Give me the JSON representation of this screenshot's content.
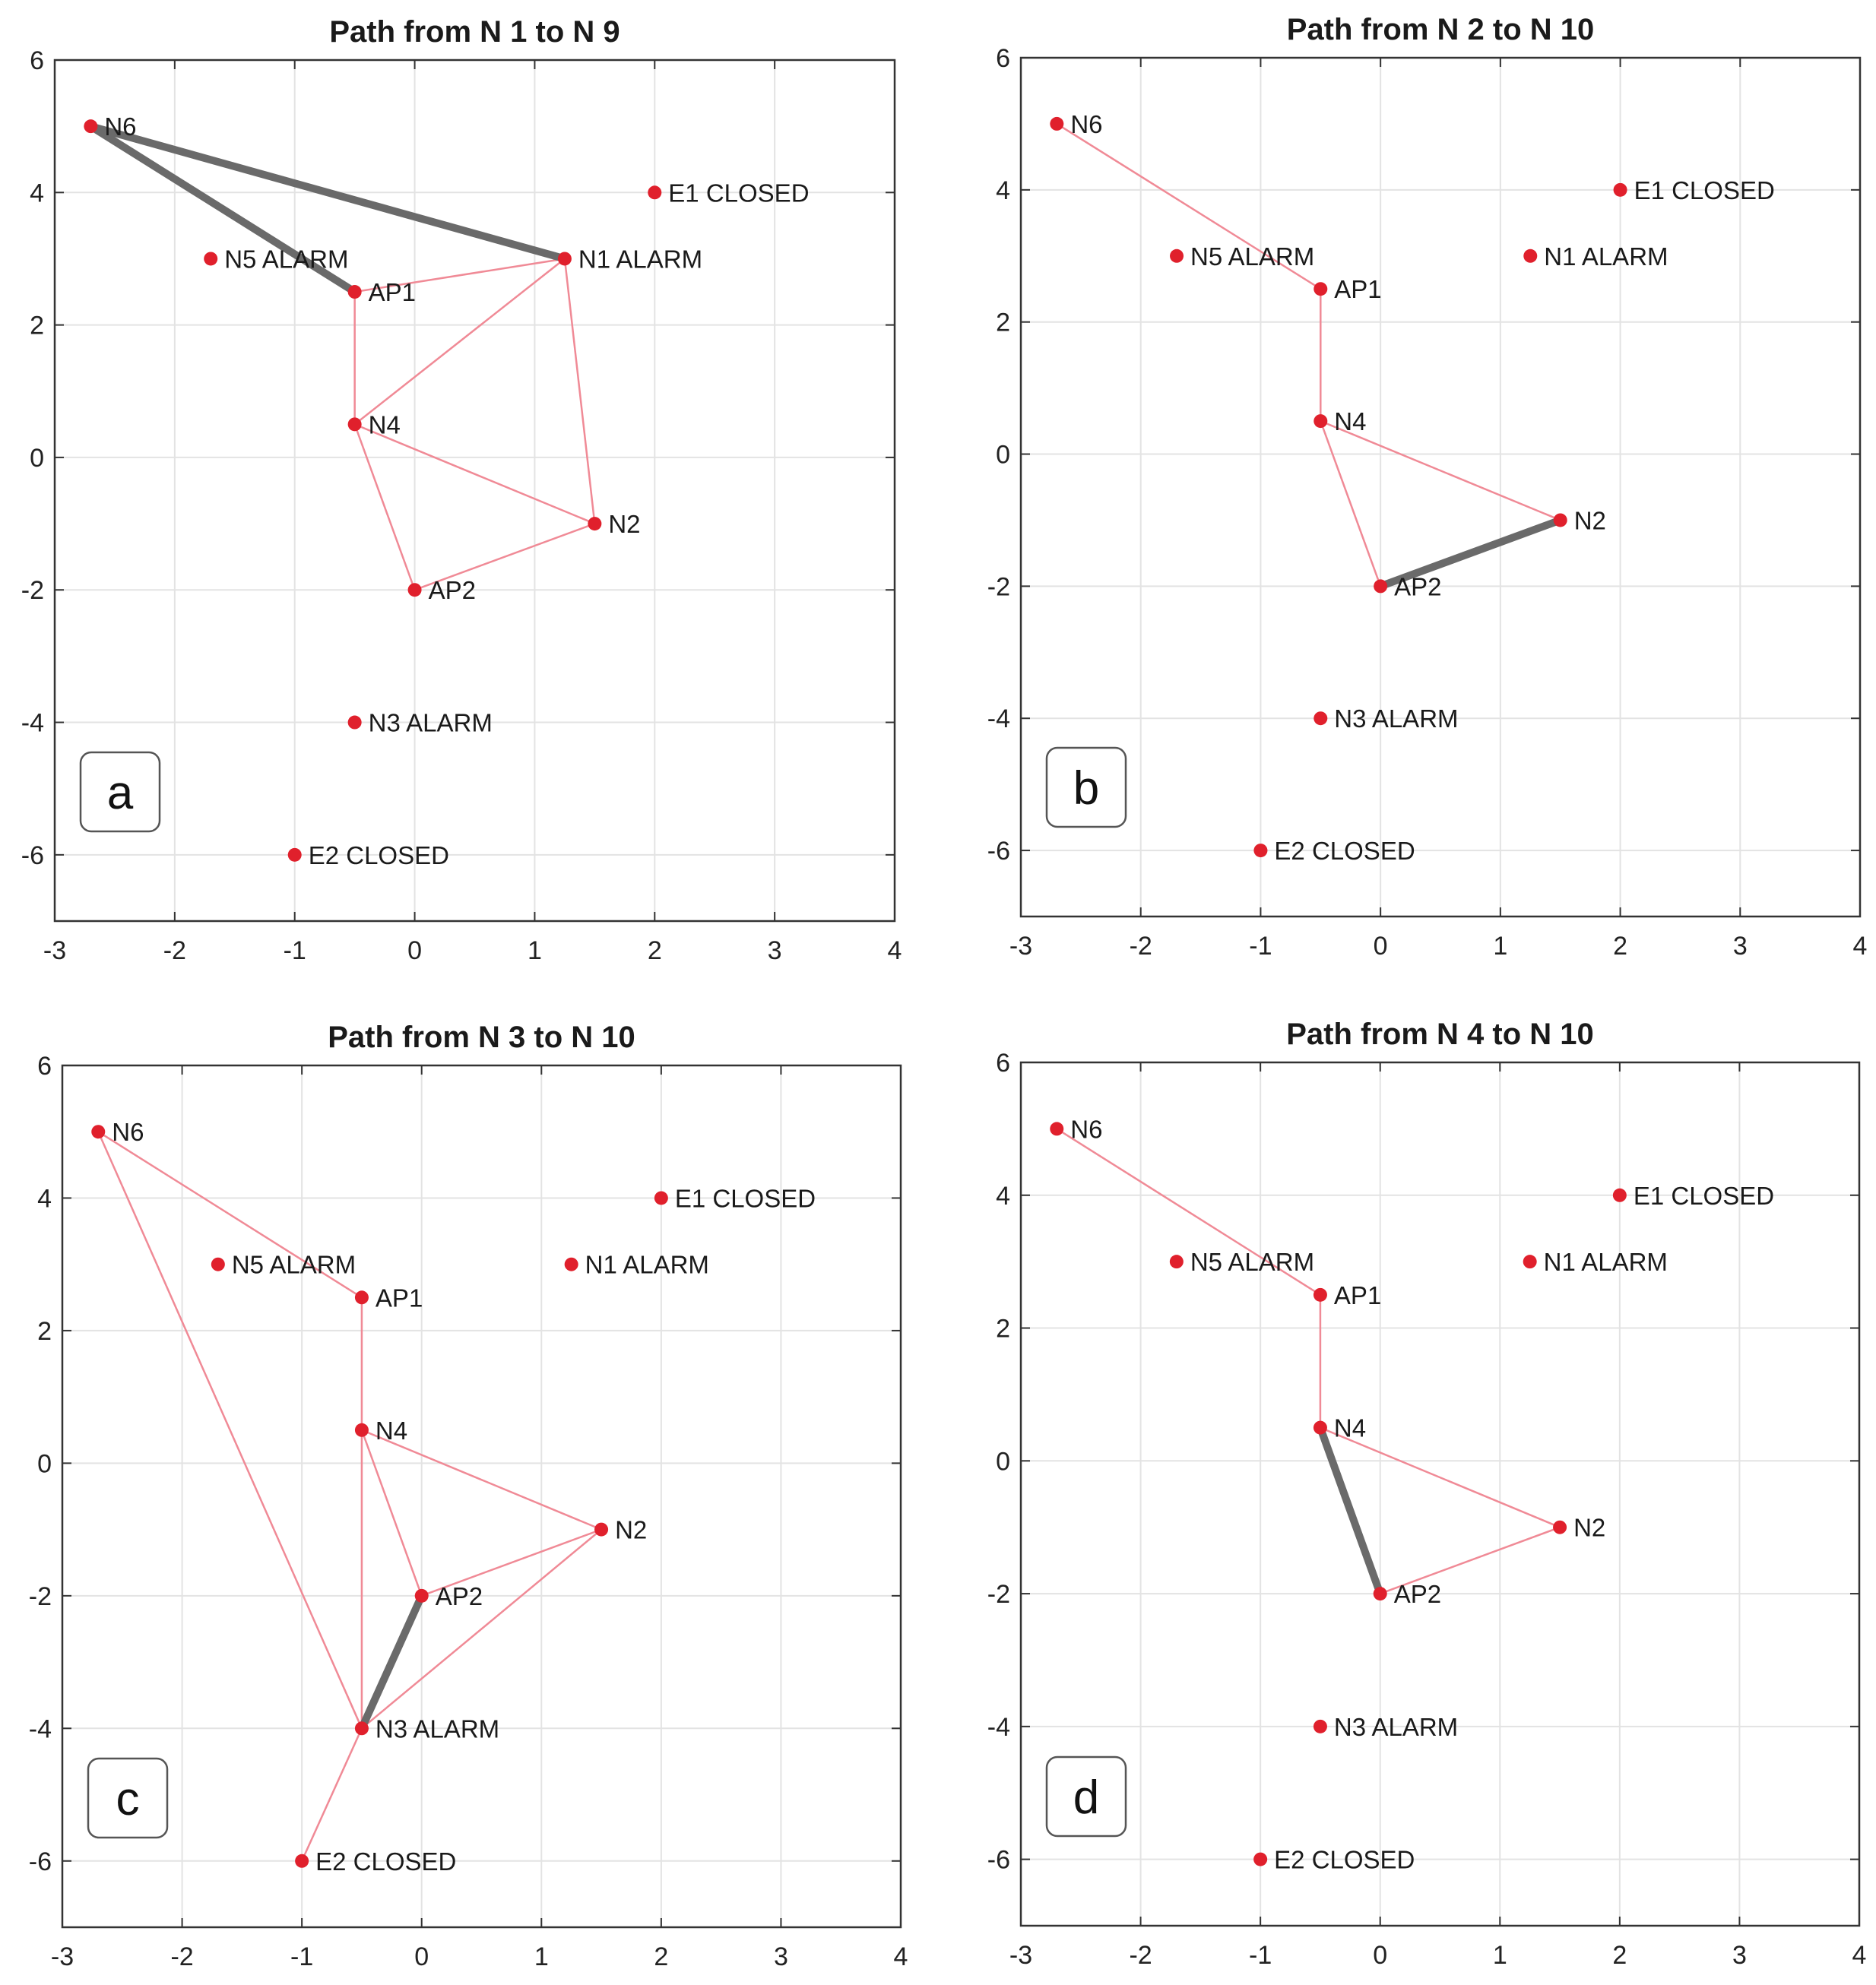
{
  "chart_data": [
    {
      "type": "scatter",
      "panel_label": "a",
      "title": "Path from N 1 to N 9",
      "xlim": [
        -3,
        4
      ],
      "ylim": [
        -7,
        6
      ],
      "xticks": [
        -3,
        -2,
        -1,
        0,
        1,
        2,
        3,
        4
      ],
      "yticks": [
        6,
        4,
        2,
        0,
        -2,
        -4,
        -6
      ],
      "grid": true,
      "nodes": [
        {
          "label": "N6",
          "x": -2.7,
          "y": 5
        },
        {
          "label": "E1 CLOSED",
          "x": 2,
          "y": 4
        },
        {
          "label": "N5 ALARM",
          "x": -1.7,
          "y": 3
        },
        {
          "label": "N1 ALARM",
          "x": 1.25,
          "y": 3
        },
        {
          "label": "AP1",
          "x": -0.5,
          "y": 2.5
        },
        {
          "label": "N4",
          "x": -0.5,
          "y": 0.5
        },
        {
          "label": "N2",
          "x": 1.5,
          "y": -1
        },
        {
          "label": "AP2",
          "x": 0,
          "y": -2
        },
        {
          "label": "N3 ALARM",
          "x": -0.5,
          "y": -4
        },
        {
          "label": "E2 CLOSED",
          "x": -1,
          "y": -6
        }
      ],
      "edges": [
        [
          0,
          3
        ],
        [
          0,
          4
        ],
        [
          4,
          3
        ],
        [
          4,
          5
        ],
        [
          5,
          3
        ],
        [
          3,
          6
        ],
        [
          5,
          6
        ],
        [
          5,
          7
        ],
        [
          7,
          6
        ]
      ],
      "path_edges": [
        [
          0,
          3
        ],
        [
          0,
          4
        ]
      ]
    },
    {
      "type": "scatter",
      "panel_label": "b",
      "title": "Path from N 2 to N 10",
      "xlim": [
        -3,
        4
      ],
      "ylim": [
        -7,
        6
      ],
      "xticks": [
        -3,
        -2,
        -1,
        0,
        1,
        2,
        3,
        4
      ],
      "yticks": [
        6,
        4,
        2,
        0,
        -2,
        -4,
        -6
      ],
      "grid": true,
      "nodes": [
        {
          "label": "N6",
          "x": -2.7,
          "y": 5
        },
        {
          "label": "E1 CLOSED",
          "x": 2,
          "y": 4
        },
        {
          "label": "N5 ALARM",
          "x": -1.7,
          "y": 3
        },
        {
          "label": "N1 ALARM",
          "x": 1.25,
          "y": 3
        },
        {
          "label": "AP1",
          "x": -0.5,
          "y": 2.5
        },
        {
          "label": "N4",
          "x": -0.5,
          "y": 0.5
        },
        {
          "label": "N2",
          "x": 1.5,
          "y": -1
        },
        {
          "label": "AP2",
          "x": 0,
          "y": -2
        },
        {
          "label": "N3 ALARM",
          "x": -0.5,
          "y": -4
        },
        {
          "label": "E2 CLOSED",
          "x": -1,
          "y": -6
        }
      ],
      "edges": [
        [
          0,
          4
        ],
        [
          4,
          5
        ],
        [
          5,
          6
        ],
        [
          5,
          7
        ],
        [
          7,
          6
        ]
      ],
      "path_edges": [
        [
          7,
          6
        ]
      ]
    },
    {
      "type": "scatter",
      "panel_label": "c",
      "title": "Path from N 3 to N 10",
      "xlim": [
        -3,
        4
      ],
      "ylim": [
        -7,
        6
      ],
      "xticks": [
        -3,
        -2,
        -1,
        0,
        1,
        2,
        3,
        4
      ],
      "yticks": [
        6,
        4,
        2,
        0,
        -2,
        -4,
        -6
      ],
      "grid": true,
      "nodes": [
        {
          "label": "N6",
          "x": -2.7,
          "y": 5
        },
        {
          "label": "E1 CLOSED",
          "x": 2,
          "y": 4
        },
        {
          "label": "N5 ALARM",
          "x": -1.7,
          "y": 3
        },
        {
          "label": "N1 ALARM",
          "x": 1.25,
          "y": 3
        },
        {
          "label": "AP1",
          "x": -0.5,
          "y": 2.5
        },
        {
          "label": "N4",
          "x": -0.5,
          "y": 0.5
        },
        {
          "label": "N2",
          "x": 1.5,
          "y": -1
        },
        {
          "label": "AP2",
          "x": 0,
          "y": -2
        },
        {
          "label": "N3 ALARM",
          "x": -0.5,
          "y": -4
        },
        {
          "label": "E2 CLOSED",
          "x": -1,
          "y": -6
        }
      ],
      "edges": [
        [
          0,
          4
        ],
        [
          0,
          8
        ],
        [
          4,
          5
        ],
        [
          5,
          6
        ],
        [
          5,
          7
        ],
        [
          5,
          8
        ],
        [
          7,
          6
        ],
        [
          6,
          8
        ],
        [
          7,
          8
        ],
        [
          8,
          9
        ]
      ],
      "path_edges": [
        [
          7,
          8
        ]
      ]
    },
    {
      "type": "scatter",
      "panel_label": "d",
      "title": "Path from N 4 to N 10",
      "xlim": [
        -3,
        4
      ],
      "ylim": [
        -7,
        6
      ],
      "xticks": [
        -3,
        -2,
        -1,
        0,
        1,
        2,
        3,
        4
      ],
      "yticks": [
        6,
        4,
        2,
        0,
        -2,
        -4,
        -6
      ],
      "grid": true,
      "nodes": [
        {
          "label": "N6",
          "x": -2.7,
          "y": 5
        },
        {
          "label": "E1 CLOSED",
          "x": 2,
          "y": 4
        },
        {
          "label": "N5 ALARM",
          "x": -1.7,
          "y": 3
        },
        {
          "label": "N1 ALARM",
          "x": 1.25,
          "y": 3
        },
        {
          "label": "AP1",
          "x": -0.5,
          "y": 2.5
        },
        {
          "label": "N4",
          "x": -0.5,
          "y": 0.5
        },
        {
          "label": "N2",
          "x": 1.5,
          "y": -1
        },
        {
          "label": "AP2",
          "x": 0,
          "y": -2
        },
        {
          "label": "N3 ALARM",
          "x": -0.5,
          "y": -4
        },
        {
          "label": "E2 CLOSED",
          "x": -1,
          "y": -6
        }
      ],
      "edges": [
        [
          0,
          4
        ],
        [
          4,
          5
        ],
        [
          5,
          6
        ],
        [
          5,
          7
        ],
        [
          7,
          6
        ]
      ],
      "path_edges": [
        [
          5,
          7
        ]
      ]
    }
  ]
}
